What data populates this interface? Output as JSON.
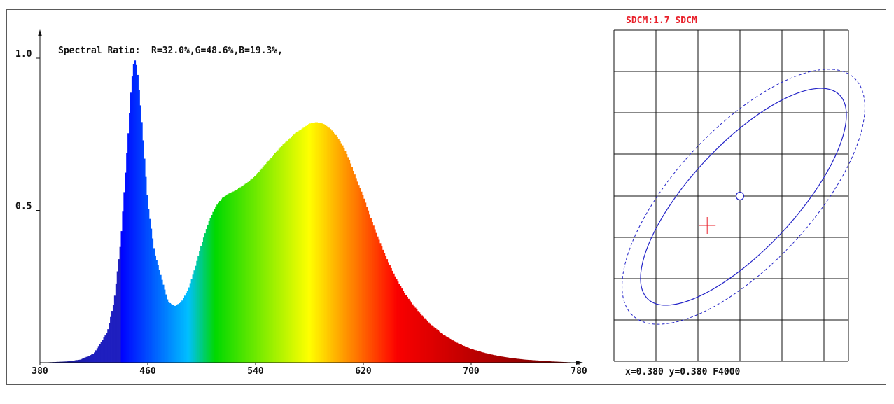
{
  "chart_data": [
    {
      "type": "area",
      "title": "Spectral Ratio:  R=32.0%,G=48.6%,B=19.3%,",
      "xlabel": "",
      "ylabel": "",
      "xlim": [
        380,
        780
      ],
      "ylim": [
        0,
        1.0
      ],
      "x_ticks": [
        "380",
        "460",
        "540",
        "620",
        "700",
        "780"
      ],
      "y_ticks": [
        "1.0",
        "0.5"
      ],
      "x": [
        380,
        390,
        400,
        410,
        420,
        430,
        435,
        440,
        445,
        448,
        450,
        452,
        455,
        460,
        465,
        470,
        475,
        480,
        485,
        490,
        495,
        500,
        505,
        510,
        515,
        520,
        525,
        530,
        535,
        540,
        545,
        550,
        555,
        560,
        565,
        570,
        575,
        580,
        585,
        590,
        595,
        600,
        605,
        610,
        615,
        620,
        625,
        630,
        635,
        640,
        645,
        650,
        655,
        660,
        665,
        670,
        680,
        690,
        700,
        710,
        720,
        730,
        740,
        750,
        760,
        770,
        780
      ],
      "values": [
        0,
        0.002,
        0.004,
        0.01,
        0.03,
        0.1,
        0.2,
        0.4,
        0.72,
        0.92,
        1.0,
        0.97,
        0.82,
        0.52,
        0.36,
        0.28,
        0.2,
        0.185,
        0.2,
        0.24,
        0.31,
        0.39,
        0.46,
        0.51,
        0.54,
        0.555,
        0.565,
        0.58,
        0.595,
        0.615,
        0.64,
        0.665,
        0.69,
        0.715,
        0.735,
        0.755,
        0.77,
        0.785,
        0.79,
        0.785,
        0.77,
        0.745,
        0.71,
        0.66,
        0.6,
        0.545,
        0.48,
        0.42,
        0.365,
        0.315,
        0.27,
        0.232,
        0.2,
        0.172,
        0.148,
        0.125,
        0.09,
        0.064,
        0.045,
        0.032,
        0.022,
        0.015,
        0.01,
        0.007,
        0.004,
        0.002,
        0
      ]
    },
    {
      "type": "scatter",
      "title": "SDCM:1.7 SDCM",
      "readout": "x=0.380 y=0.380 F4000",
      "grid": true,
      "target": {
        "x": 0.38,
        "y": 0.38
      },
      "measured": {
        "x": 0.3761,
        "y": 0.3765
      },
      "colors": {
        "title": "#e8202a",
        "ellipse": "#2424c8",
        "marker": "#e8202a"
      }
    }
  ]
}
